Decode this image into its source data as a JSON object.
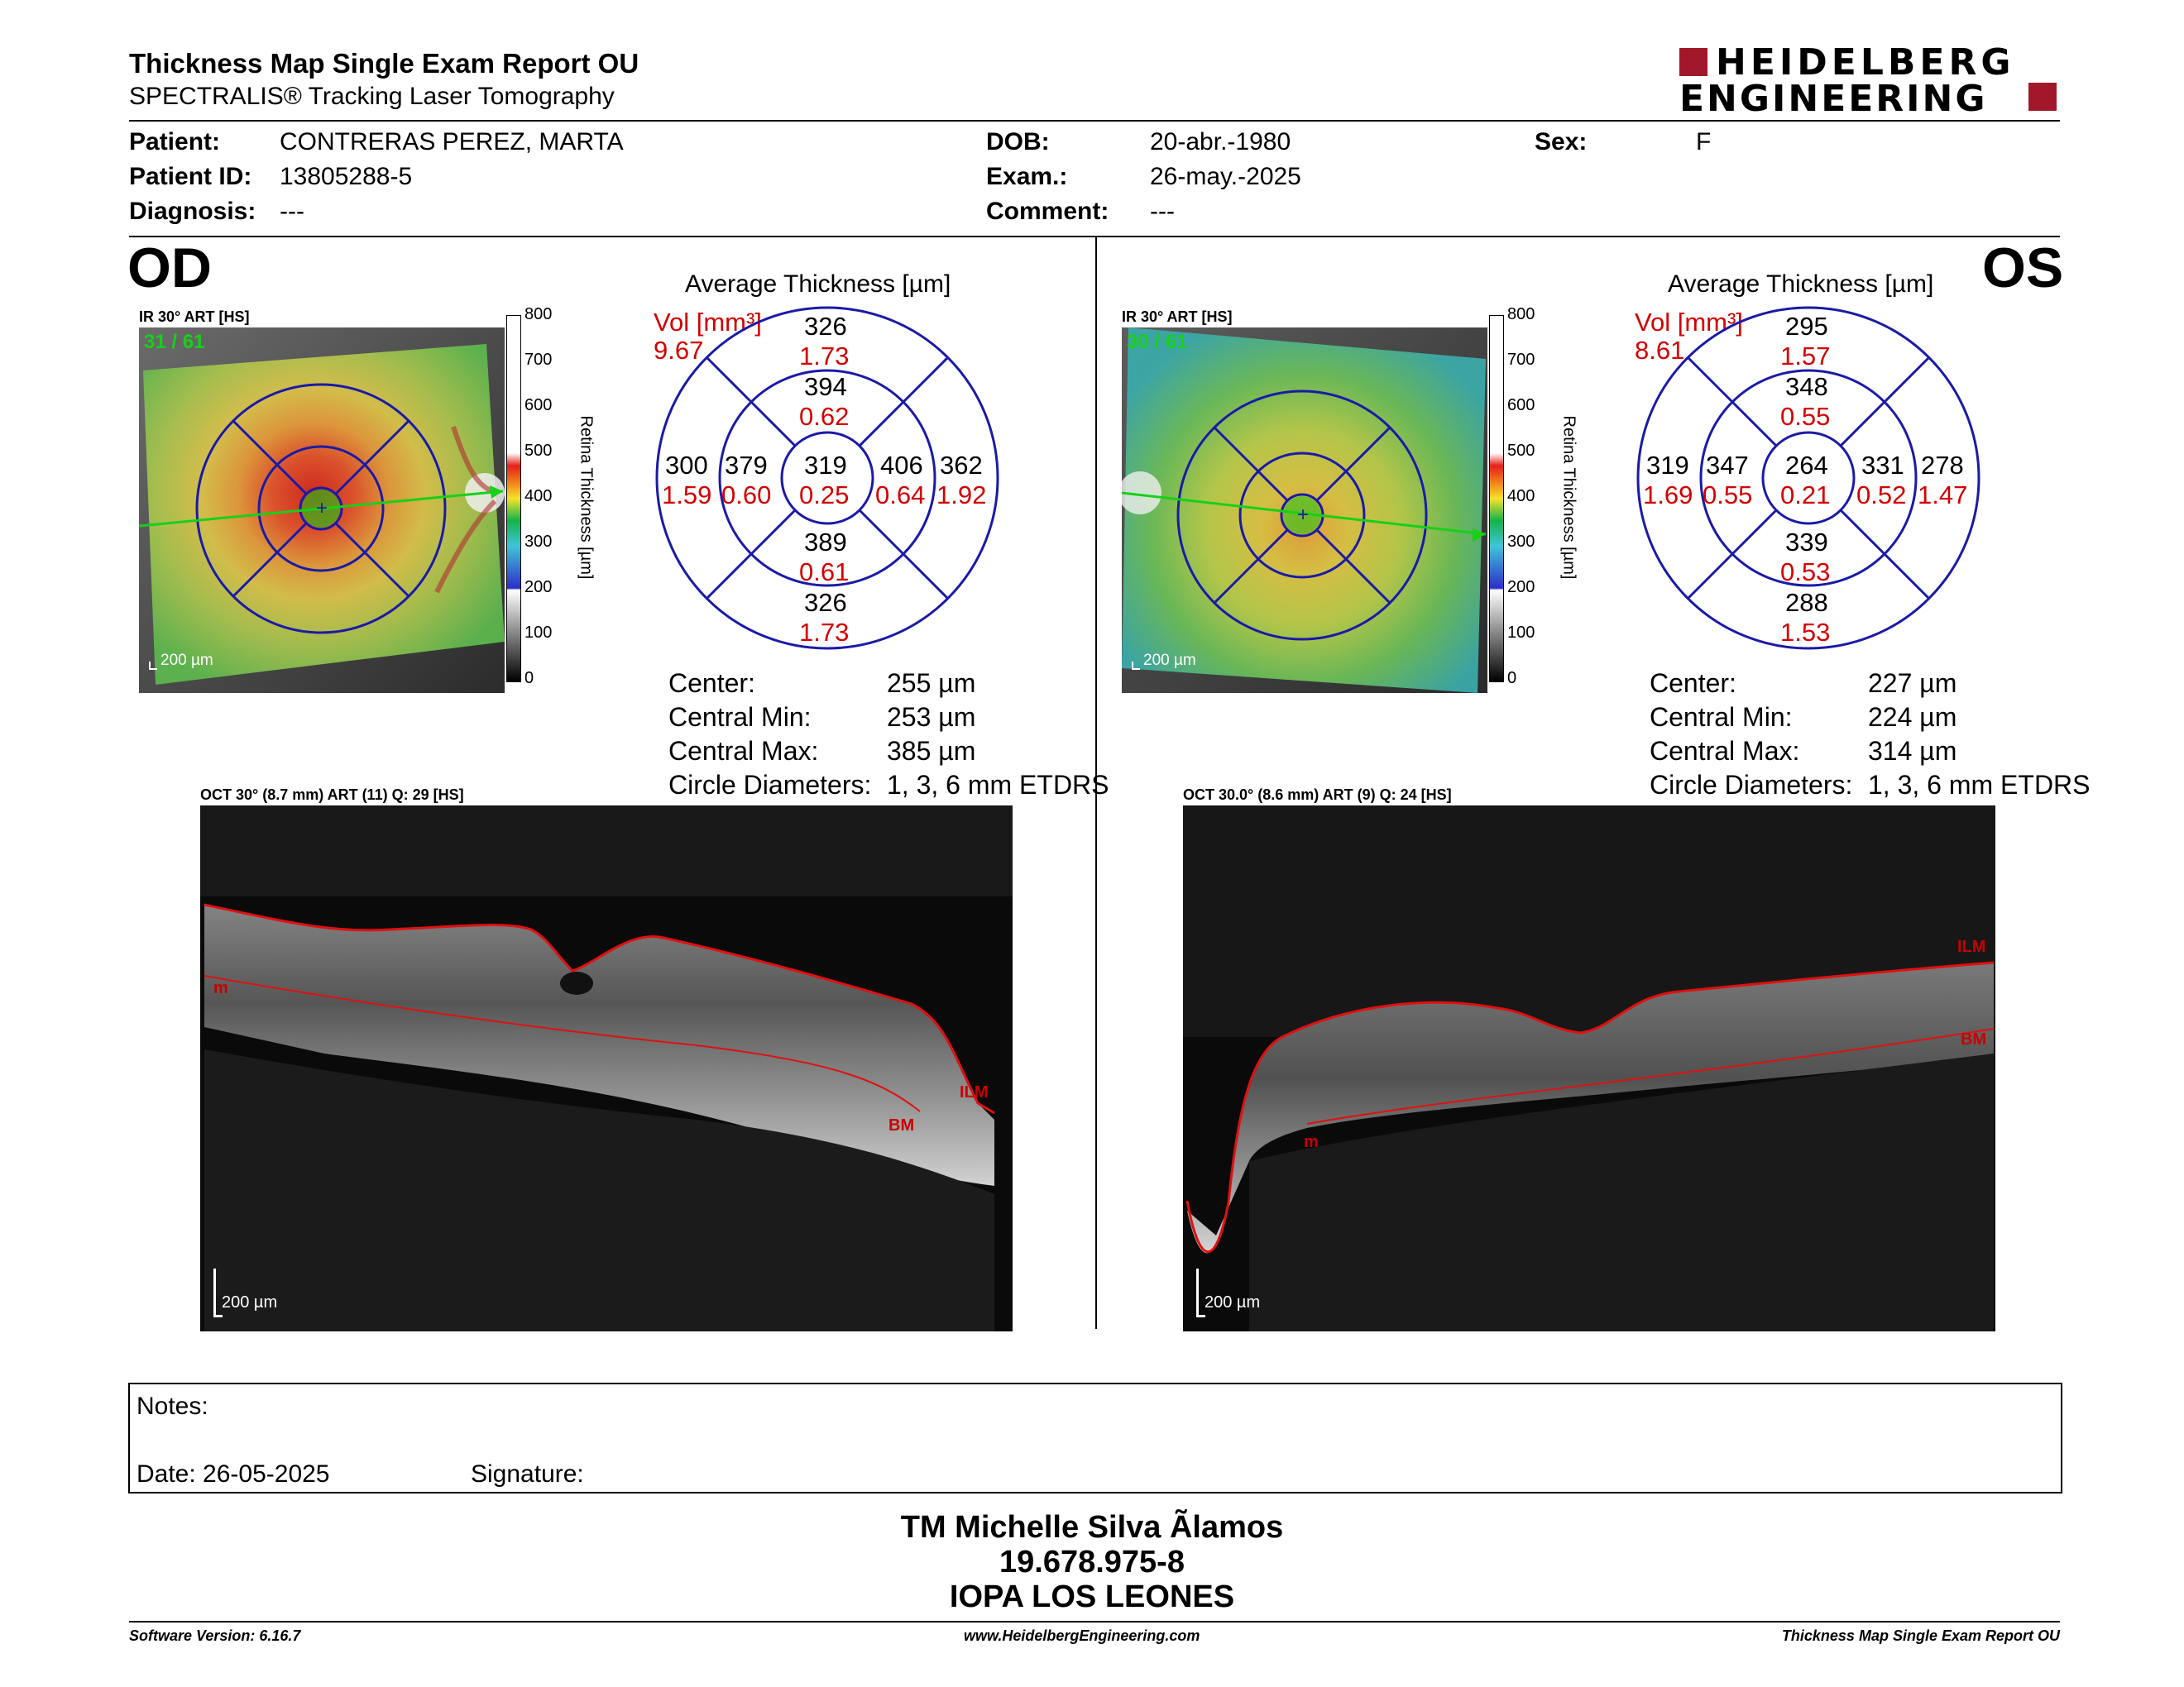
{
  "header": {
    "title": "Thickness Map Single Exam Report OU",
    "subtitle": "SPECTRALIS® Tracking Laser Tomography",
    "logo_line1": "HEIDELBERG",
    "logo_line2": "ENGINEERING"
  },
  "patient": {
    "patient_label": "Patient:",
    "patient_value": "CONTRERAS PEREZ, MARTA",
    "id_label": "Patient ID:",
    "id_value": "13805288-5",
    "diagnosis_label": "Diagnosis:",
    "diagnosis_value": "---",
    "dob_label": "DOB:",
    "dob_value": "20-abr.-1980",
    "exam_label": "Exam.:",
    "exam_value": "26-may.-2025",
    "comment_label": "Comment:",
    "comment_value": "---",
    "sex_label": "Sex:",
    "sex_value": "F"
  },
  "colorbar": {
    "ticks": [
      "800",
      "700",
      "600",
      "500",
      "400",
      "300",
      "200",
      "100",
      "0"
    ],
    "label": "Retina Thickness [µm]"
  },
  "od": {
    "eye": "OD",
    "ir_label": "IR 30° ART [HS]",
    "frames": "31 / 61",
    "scale": "200 µm",
    "grid_title": "Average Thickness [µm]",
    "vol_label": "Vol [mm³]",
    "vol_value": "9.67",
    "sectors": {
      "outer_top": {
        "t": "326",
        "v": "1.73"
      },
      "inner_top": {
        "t": "394",
        "v": "0.62"
      },
      "outer_left": {
        "t": "300",
        "v": "1.59"
      },
      "inner_left": {
        "t": "379",
        "v": "0.60"
      },
      "center": {
        "t": "319",
        "v": "0.25"
      },
      "inner_right": {
        "t": "406",
        "v": "0.64"
      },
      "outer_right": {
        "t": "362",
        "v": "1.92"
      },
      "inner_bottom": {
        "t": "389",
        "v": "0.61"
      },
      "outer_bottom": {
        "t": "326",
        "v": "1.73"
      }
    },
    "stats": [
      {
        "label": "Center:",
        "value": "255 µm"
      },
      {
        "label": "Central Min:",
        "value": "253 µm"
      },
      {
        "label": "Central Max:",
        "value": "385 µm"
      },
      {
        "label": "Circle Diameters:",
        "value": "1, 3, 6 mm ETDRS"
      }
    ],
    "oct_label": "OCT 30° (8.7 mm) ART (11) Q: 29 [HS]",
    "oct_scale": "200 µm",
    "layer_ilm": "ILM",
    "layer_bm": "BM",
    "layer_m": "m"
  },
  "os": {
    "eye": "OS",
    "ir_label": "IR 30° ART [HS]",
    "frames": "30 / 61",
    "scale": "200 µm",
    "grid_title": "Average Thickness [µm]",
    "vol_label": "Vol [mm³]",
    "vol_value": "8.61",
    "sectors": {
      "outer_top": {
        "t": "295",
        "v": "1.57"
      },
      "inner_top": {
        "t": "348",
        "v": "0.55"
      },
      "outer_left": {
        "t": "319",
        "v": "1.69"
      },
      "inner_left": {
        "t": "347",
        "v": "0.55"
      },
      "center": {
        "t": "264",
        "v": "0.21"
      },
      "inner_right": {
        "t": "331",
        "v": "0.52"
      },
      "outer_right": {
        "t": "278",
        "v": "1.47"
      },
      "inner_bottom": {
        "t": "339",
        "v": "0.53"
      },
      "outer_bottom": {
        "t": "288",
        "v": "1.53"
      }
    },
    "stats": [
      {
        "label": "Center:",
        "value": "227 µm"
      },
      {
        "label": "Central Min:",
        "value": "224 µm"
      },
      {
        "label": "Central Max:",
        "value": "314 µm"
      },
      {
        "label": "Circle Diameters:",
        "value": "1, 3, 6 mm ETDRS"
      }
    ],
    "oct_label": "OCT 30.0° (8.6 mm) ART (9) Q: 24 [HS]",
    "oct_scale": "200 µm",
    "layer_ilm": "ILM",
    "layer_bm": "BM",
    "layer_m": "m"
  },
  "notes": {
    "notes_label": "Notes:",
    "date_label": "Date: 26-05-2025",
    "signature_label": "Signature:"
  },
  "signoff": {
    "line1": "TM Michelle Silva Ãlamos",
    "line2": "19.678.975-8",
    "line3": "IOPA LOS LEONES"
  },
  "footer": {
    "left": "Software Version: 6.16.7",
    "center": "www.HeidelbergEngineering.com",
    "right": "Thickness Map Single Exam Report OU"
  },
  "colors": {
    "grid_blue": "#1a1aa8",
    "value_red": "#d40000",
    "brand_red": "#a0182a",
    "fixation_green": "#18d018"
  }
}
